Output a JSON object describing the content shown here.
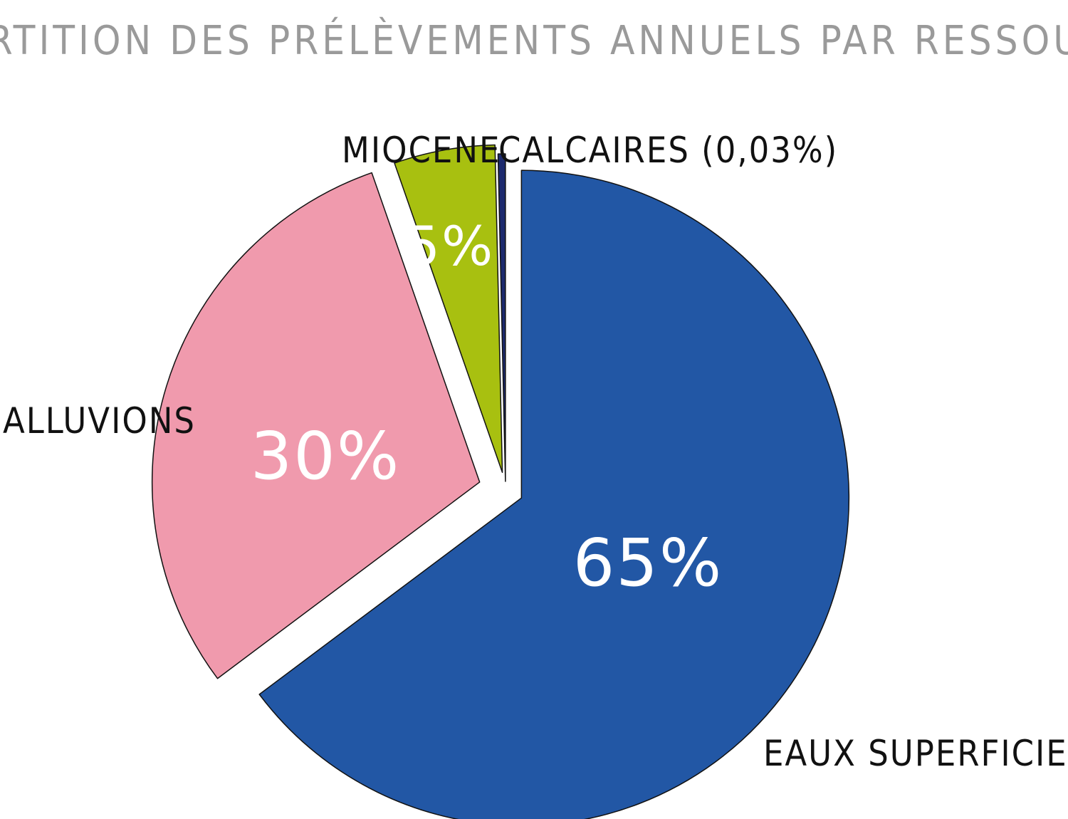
{
  "chart_data": {
    "type": "pie",
    "title": "RÉPARTITION DES PRÉLÈVEMENTS ANNUELS PAR RESSOURCE",
    "slices": [
      {
        "label": "EAUX SUPERFICIELLES",
        "value": 65,
        "value_label": "65%",
        "color": "#2257a5"
      },
      {
        "label": "ALLUVIONS",
        "value": 30,
        "value_label": "30%",
        "color": "#f09aad"
      },
      {
        "label": "MIOCENE",
        "value": 5,
        "value_label": "5%",
        "color": "#a8c010"
      },
      {
        "label": "CALCAIRES (0,03%)",
        "value": 0.03,
        "value_label": "",
        "color": "#1d2a6e"
      }
    ]
  }
}
